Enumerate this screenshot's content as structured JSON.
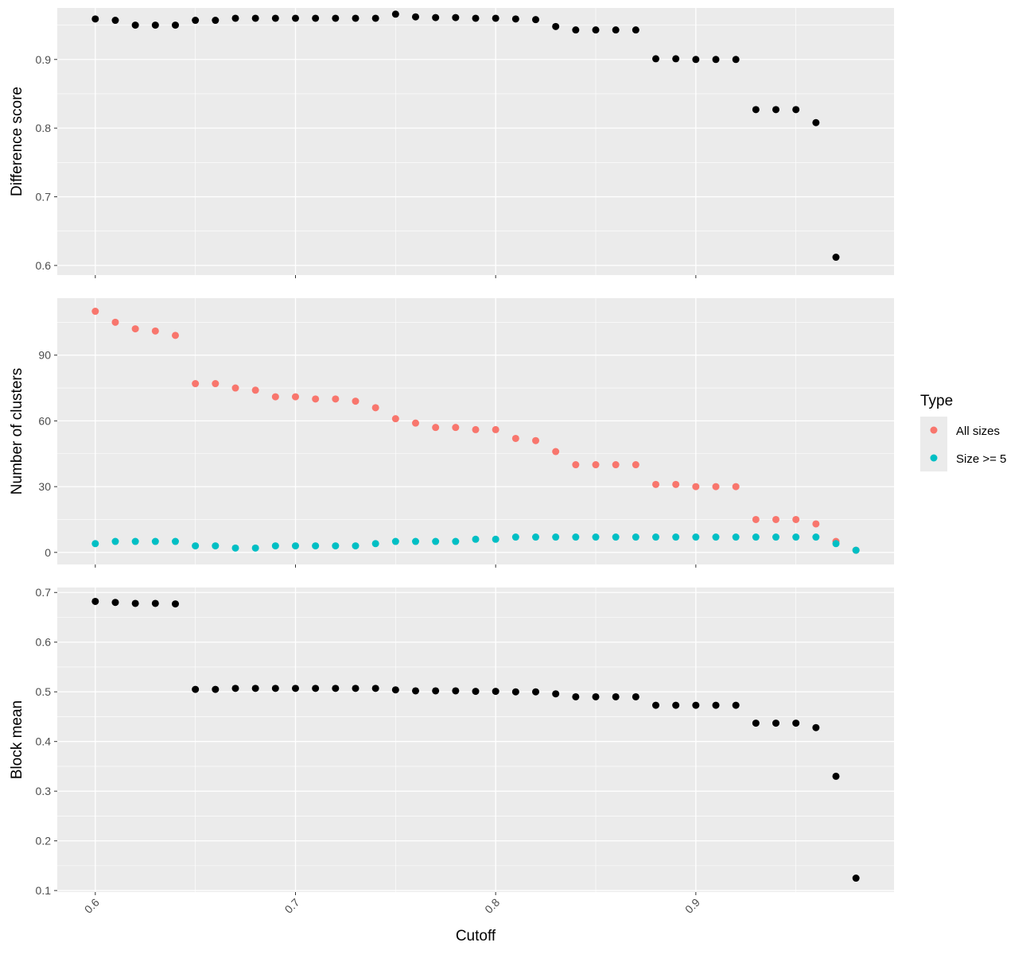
{
  "chart_data": {
    "type": "scatter",
    "xlabel": "Cutoff",
    "xlim": [
      0.581,
      0.999
    ],
    "x_ticks": [
      "0.6",
      "0.7",
      "0.8",
      "0.9"
    ],
    "x_tick_values": [
      0.6,
      0.7,
      0.8,
      0.9
    ],
    "x_minor_ticks": [
      0.65,
      0.75,
      0.85,
      0.95
    ],
    "legend": {
      "title": "Type",
      "placement": "right",
      "entries": [
        {
          "label": "All sizes",
          "color": "#F8766D"
        },
        {
          "label": "Size >= 5",
          "color": "#00BFC4"
        }
      ]
    },
    "colors": {
      "panel_background": "#EBEBEB",
      "grid": "#FFFFFF",
      "point": "#000000",
      "tick_text": "#4D4D4D"
    },
    "grid": true,
    "panels": [
      {
        "ylabel": "Difference score",
        "ylim": [
          0.586,
          0.975
        ],
        "y_ticks": [
          "0.6",
          "0.7",
          "0.8",
          "0.9"
        ],
        "y_tick_values": [
          0.6,
          0.7,
          0.8,
          0.9
        ],
        "y_minor_ticks": [
          0.65,
          0.75,
          0.85,
          0.95
        ],
        "series": [
          {
            "color": "#000000",
            "x": [
              0.6,
              0.61,
              0.62,
              0.63,
              0.64,
              0.65,
              0.66,
              0.67,
              0.68,
              0.69,
              0.7,
              0.71,
              0.72,
              0.73,
              0.74,
              0.75,
              0.76,
              0.77,
              0.78,
              0.79,
              0.8,
              0.81,
              0.82,
              0.83,
              0.84,
              0.85,
              0.86,
              0.87,
              0.88,
              0.89,
              0.9,
              0.91,
              0.92,
              0.93,
              0.94,
              0.95,
              0.96,
              0.97
            ],
            "y": [
              0.959,
              0.957,
              0.95,
              0.95,
              0.95,
              0.957,
              0.957,
              0.96,
              0.96,
              0.96,
              0.96,
              0.96,
              0.96,
              0.96,
              0.96,
              0.966,
              0.962,
              0.961,
              0.961,
              0.96,
              0.96,
              0.959,
              0.958,
              0.948,
              0.943,
              0.943,
              0.943,
              0.943,
              0.901,
              0.901,
              0.9,
              0.9,
              0.9,
              0.827,
              0.827,
              0.827,
              0.808,
              0.612
            ]
          }
        ]
      },
      {
        "ylabel": "Number of clusters",
        "ylim": [
          -5.5,
          116
        ],
        "y_ticks": [
          "0",
          "30",
          "60",
          "90"
        ],
        "y_tick_values": [
          0,
          30,
          60,
          90
        ],
        "y_minor_ticks": [
          15,
          45,
          75,
          105
        ],
        "series": [
          {
            "name": "All sizes",
            "color": "#F8766D",
            "x": [
              0.6,
              0.61,
              0.62,
              0.63,
              0.64,
              0.65,
              0.66,
              0.67,
              0.68,
              0.69,
              0.7,
              0.71,
              0.72,
              0.73,
              0.74,
              0.75,
              0.76,
              0.77,
              0.78,
              0.79,
              0.8,
              0.81,
              0.82,
              0.83,
              0.84,
              0.85,
              0.86,
              0.87,
              0.88,
              0.89,
              0.9,
              0.91,
              0.92,
              0.93,
              0.94,
              0.95,
              0.96,
              0.97,
              0.98
            ],
            "y": [
              110,
              105,
              102,
              101,
              99,
              77,
              77,
              75,
              74,
              71,
              71,
              70,
              70,
              69,
              66,
              61,
              59,
              57,
              57,
              56,
              56,
              52,
              51,
              46,
              40,
              40,
              40,
              40,
              31,
              31,
              30,
              30,
              30,
              15,
              15,
              15,
              13,
              5,
              1
            ]
          },
          {
            "name": "Size >= 5",
            "color": "#00BFC4",
            "x": [
              0.6,
              0.61,
              0.62,
              0.63,
              0.64,
              0.65,
              0.66,
              0.67,
              0.68,
              0.69,
              0.7,
              0.71,
              0.72,
              0.73,
              0.74,
              0.75,
              0.76,
              0.77,
              0.78,
              0.79,
              0.8,
              0.81,
              0.82,
              0.83,
              0.84,
              0.85,
              0.86,
              0.87,
              0.88,
              0.89,
              0.9,
              0.91,
              0.92,
              0.93,
              0.94,
              0.95,
              0.96,
              0.97,
              0.98
            ],
            "y": [
              4,
              5,
              5,
              5,
              5,
              3,
              3,
              2,
              2,
              3,
              3,
              3,
              3,
              3,
              4,
              5,
              5,
              5,
              5,
              6,
              6,
              7,
              7,
              7,
              7,
              7,
              7,
              7,
              7,
              7,
              7,
              7,
              7,
              7,
              7,
              7,
              7,
              4,
              1
            ]
          }
        ]
      },
      {
        "ylabel": "Block mean",
        "ylim": [
          0.097,
          0.71
        ],
        "y_ticks": [
          "0.1",
          "0.2",
          "0.3",
          "0.4",
          "0.5",
          "0.6",
          "0.7"
        ],
        "y_tick_values": [
          0.1,
          0.2,
          0.3,
          0.4,
          0.5,
          0.6,
          0.7
        ],
        "y_minor_ticks": [
          0.15,
          0.25,
          0.35,
          0.45,
          0.55,
          0.65
        ],
        "series": [
          {
            "color": "#000000",
            "x": [
              0.6,
              0.61,
              0.62,
              0.63,
              0.64,
              0.65,
              0.66,
              0.67,
              0.68,
              0.69,
              0.7,
              0.71,
              0.72,
              0.73,
              0.74,
              0.75,
              0.76,
              0.77,
              0.78,
              0.79,
              0.8,
              0.81,
              0.82,
              0.83,
              0.84,
              0.85,
              0.86,
              0.87,
              0.88,
              0.89,
              0.9,
              0.91,
              0.92,
              0.93,
              0.94,
              0.95,
              0.96,
              0.97,
              0.98
            ],
            "y": [
              0.682,
              0.68,
              0.678,
              0.678,
              0.677,
              0.505,
              0.505,
              0.507,
              0.507,
              0.507,
              0.507,
              0.507,
              0.507,
              0.507,
              0.507,
              0.504,
              0.502,
              0.502,
              0.502,
              0.501,
              0.501,
              0.5,
              0.5,
              0.496,
              0.49,
              0.49,
              0.49,
              0.49,
              0.473,
              0.473,
              0.473,
              0.473,
              0.473,
              0.437,
              0.437,
              0.437,
              0.428,
              0.33,
              0.125
            ]
          }
        ]
      }
    ]
  }
}
